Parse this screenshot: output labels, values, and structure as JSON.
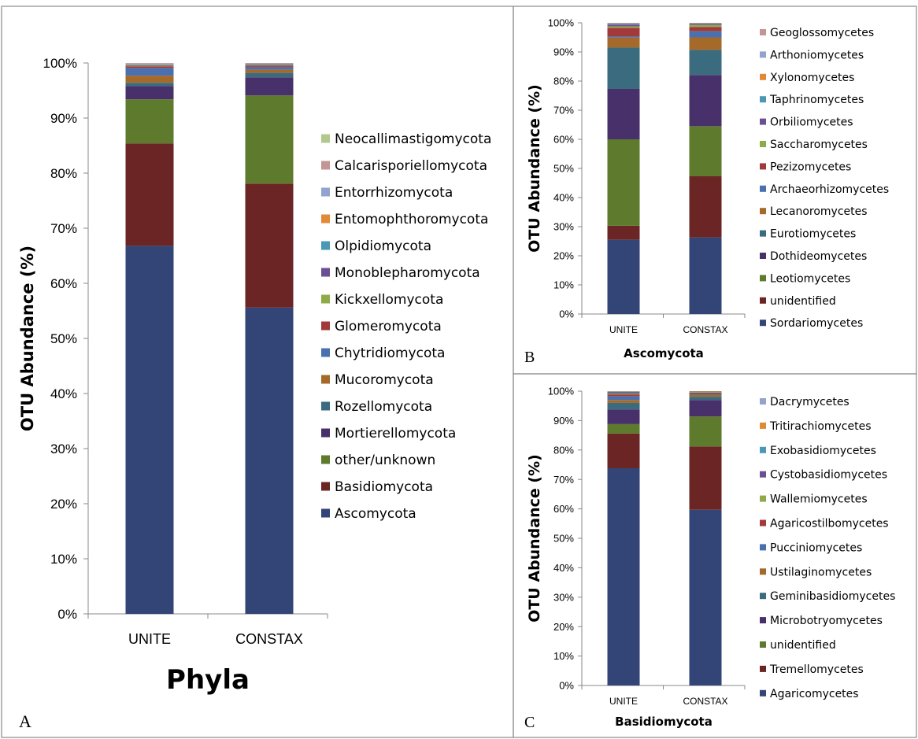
{
  "colors": {
    "Ascomycota": "#334477",
    "Basidiomycota": "#6b2525",
    "other/unknown": "#5e7a2c",
    "Mortierellomycota": "#48306b",
    "Rozellomycota": "#3b6b7f",
    "Mucoromycota": "#a56a2a",
    "Chytridiomycota": "#4a70b0",
    "Glomeromycota": "#a33a3a",
    "Kickxellomycota": "#8fab48",
    "Monoblepharomycota": "#6a4f93",
    "Olpidiomycota": "#4a98b5",
    "Entomophthoromycota": "#e08a38",
    "Entorrhizomycota": "#93a2cf",
    "Calcarisporiellomycota": "#c49595",
    "Neocallimastigomycota": "#b2c98e",
    "Sordariomycetes": "#334477",
    "unidentified_asco": "#6b2525",
    "Leotiomycetes": "#5e7a2c",
    "Dothideomycetes": "#48306b",
    "Eurotiomycetes": "#3b6b7f",
    "Lecanoromycetes": "#a56a2a",
    "Archaeorhizomycetes": "#4a70b0",
    "Pezizomycetes": "#a33a3a",
    "Saccharomycetes": "#8fab48",
    "Orbiliomycetes": "#6a4f93",
    "Taphrinomycetes": "#4a98b5",
    "Xylonomycetes": "#e08a38",
    "Arthoniomycetes": "#93a2cf",
    "Geoglossomycetes": "#c49595",
    "Agaricomycetes": "#334477",
    "Tremellomycetes": "#6b2525",
    "unidentified_basidio": "#5e7a2c",
    "Microbotryomycetes": "#48306b",
    "Geminibasidiomycetes": "#3b6b7f",
    "Ustilaginomycetes": "#a56a2a",
    "Pucciniomycetes": "#4a70b0",
    "Agaricostilbomycetes": "#a33a3a",
    "Wallemiomycetes": "#8fab48",
    "Cystobasidiomycetes": "#6a4f93",
    "Exobasidiomycetes": "#4a98b5",
    "Tritirachiomycetes": "#e08a38",
    "Dacrymycetes": "#93a2cf"
  },
  "chart_data": [
    {
      "panel_label": "A",
      "type": "bar",
      "stacked": true,
      "title": "Phyla",
      "xlabel": "Phyla",
      "ylabel": "OTU Abundance (%)",
      "ylim": [
        0,
        100
      ],
      "yticks": [
        "0%",
        "10%",
        "20%",
        "30%",
        "40%",
        "50%",
        "60%",
        "70%",
        "80%",
        "90%",
        "100%"
      ],
      "categories": [
        "UNITE",
        "CONSTAX"
      ],
      "legend_position": "right",
      "series": [
        {
          "name": "Ascomycota",
          "color_key": "Ascomycota",
          "values": [
            66.8,
            55.6
          ]
        },
        {
          "name": "Basidiomycota",
          "color_key": "Basidiomycota",
          "values": [
            18.6,
            22.5
          ]
        },
        {
          "name": "other/unknown",
          "color_key": "other/unknown",
          "values": [
            8.0,
            16.0
          ]
        },
        {
          "name": "Mortierellomycota",
          "color_key": "Mortierellomycota",
          "values": [
            2.4,
            3.3
          ]
        },
        {
          "name": "Rozellomycota",
          "color_key": "Rozellomycota",
          "values": [
            0.6,
            0.8
          ]
        },
        {
          "name": "Mucoromycota",
          "color_key": "Mucoromycota",
          "values": [
            1.3,
            0.6
          ]
        },
        {
          "name": "Chytridiomycota",
          "color_key": "Chytridiomycota",
          "values": [
            1.4,
            0.5
          ]
        },
        {
          "name": "Glomeromycota",
          "color_key": "Glomeromycota",
          "values": [
            0.3,
            0.2
          ]
        },
        {
          "name": "Kickxellomycota",
          "color_key": "Kickxellomycota",
          "values": [
            0.1,
            0.1
          ]
        },
        {
          "name": "Monoblepharomycota",
          "color_key": "Monoblepharomycota",
          "values": [
            0.1,
            0.1
          ]
        },
        {
          "name": "Olpidiomycota",
          "color_key": "Olpidiomycota",
          "values": [
            0.1,
            0.1
          ]
        },
        {
          "name": "Entomophthoromycota",
          "color_key": "Entomophthoromycota",
          "values": [
            0.1,
            0.1
          ]
        },
        {
          "name": "Entorrhizomycota",
          "color_key": "Entorrhizomycota",
          "values": [
            0.1,
            0.05
          ]
        },
        {
          "name": "Calcarisporiellomycota",
          "color_key": "Calcarisporiellomycota",
          "values": [
            0.1,
            0.05
          ]
        },
        {
          "name": "Neocallimastigomycota",
          "color_key": "Neocallimastigomycota",
          "values": [
            0.0,
            0.0
          ]
        }
      ]
    },
    {
      "panel_label": "B",
      "type": "bar",
      "stacked": true,
      "title": "Ascomycota",
      "xlabel": "Ascomycota",
      "ylabel": "OTU Abundance (%)",
      "ylim": [
        0,
        100
      ],
      "yticks": [
        "0%",
        "10%",
        "20%",
        "30%",
        "40%",
        "50%",
        "60%",
        "70%",
        "80%",
        "90%",
        "100%"
      ],
      "categories": [
        "UNITE",
        "CONSTAX"
      ],
      "legend_position": "right",
      "series": [
        {
          "name": "Sordariomycetes",
          "color_key": "Sordariomycetes",
          "values": [
            25.5,
            26.3
          ]
        },
        {
          "name": "unidentified",
          "color_key": "unidentified_asco",
          "values": [
            4.8,
            21.0
          ]
        },
        {
          "name": "Leotiomycetes",
          "color_key": "Leotiomycetes",
          "values": [
            29.7,
            17.2
          ]
        },
        {
          "name": "Dothideomycetes",
          "color_key": "Dothideomycetes",
          "values": [
            17.3,
            17.6
          ]
        },
        {
          "name": "Eurotiomycetes",
          "color_key": "Eurotiomycetes",
          "values": [
            14.2,
            8.6
          ]
        },
        {
          "name": "Lecanoromycetes",
          "color_key": "Lecanoromycetes",
          "values": [
            3.4,
            4.3
          ]
        },
        {
          "name": "Archaeorhizomycetes",
          "color_key": "Archaeorhizomycetes",
          "values": [
            0.4,
            2.1
          ]
        },
        {
          "name": "Pezizomycetes",
          "color_key": "Pezizomycetes",
          "values": [
            3.0,
            1.5
          ]
        },
        {
          "name": "Saccharomycetes",
          "color_key": "Saccharomycetes",
          "values": [
            0.5,
            0.7
          ]
        },
        {
          "name": "Orbiliomycetes",
          "color_key": "Orbiliomycetes",
          "values": [
            0.6,
            0.3
          ]
        },
        {
          "name": "Taphrinomycetes",
          "color_key": "Taphrinomycetes",
          "values": [
            0.3,
            0.2
          ]
        },
        {
          "name": "Xylonomycetes",
          "color_key": "Xylonomycetes",
          "values": [
            0.1,
            0.1
          ]
        },
        {
          "name": "Arthoniomycetes",
          "color_key": "Arthoniomycetes",
          "values": [
            0.1,
            0.05
          ]
        },
        {
          "name": "Geoglossomycetes",
          "color_key": "Geoglossomycetes",
          "values": [
            0.1,
            0.05
          ]
        }
      ]
    },
    {
      "panel_label": "C",
      "type": "bar",
      "stacked": true,
      "title": "Basidiomycota",
      "xlabel": "Basidiomycota",
      "ylabel": "OTU Abundance (%)",
      "ylim": [
        0,
        100
      ],
      "yticks": [
        "0%",
        "10%",
        "20%",
        "30%",
        "40%",
        "50%",
        "60%",
        "70%",
        "80%",
        "90%",
        "100%"
      ],
      "categories": [
        "UNITE",
        "CONSTAX"
      ],
      "legend_position": "right",
      "series": [
        {
          "name": "Agaricomycetes",
          "color_key": "Agaricomycetes",
          "values": [
            73.8,
            59.7
          ]
        },
        {
          "name": "Tremellomycetes",
          "color_key": "Tremellomycetes",
          "values": [
            11.8,
            21.5
          ]
        },
        {
          "name": "unidentified",
          "color_key": "unidentified_basidio",
          "values": [
            3.2,
            10.2
          ]
        },
        {
          "name": "Microbotryomycetes",
          "color_key": "Microbotryomycetes",
          "values": [
            5.0,
            5.6
          ]
        },
        {
          "name": "Geminibasidiomycetes",
          "color_key": "Geminibasidiomycetes",
          "values": [
            2.2,
            1.1
          ]
        },
        {
          "name": "Ustilaginomycetes",
          "color_key": "Ustilaginomycetes",
          "values": [
            1.0,
            0.7
          ]
        },
        {
          "name": "Pucciniomycetes",
          "color_key": "Pucciniomycetes",
          "values": [
            1.3,
            0.4
          ]
        },
        {
          "name": "Agaricostilbomycetes",
          "color_key": "Agaricostilbomycetes",
          "values": [
            0.6,
            0.3
          ]
        },
        {
          "name": "Wallemiomycetes",
          "color_key": "Wallemiomycetes",
          "values": [
            0.3,
            0.2
          ]
        },
        {
          "name": "Cystobasidiomycetes",
          "color_key": "Cystobasidiomycetes",
          "values": [
            0.4,
            0.2
          ]
        },
        {
          "name": "Exobasidiomycetes",
          "color_key": "Exobasidiomycetes",
          "values": [
            0.2,
            0.05
          ]
        },
        {
          "name": "Tritirachiomycetes",
          "color_key": "Tritirachiomycetes",
          "values": [
            0.1,
            0.05
          ]
        },
        {
          "name": "Dacrymycetes",
          "color_key": "Dacrymycetes",
          "values": [
            0.1,
            0.0
          ]
        }
      ]
    }
  ]
}
